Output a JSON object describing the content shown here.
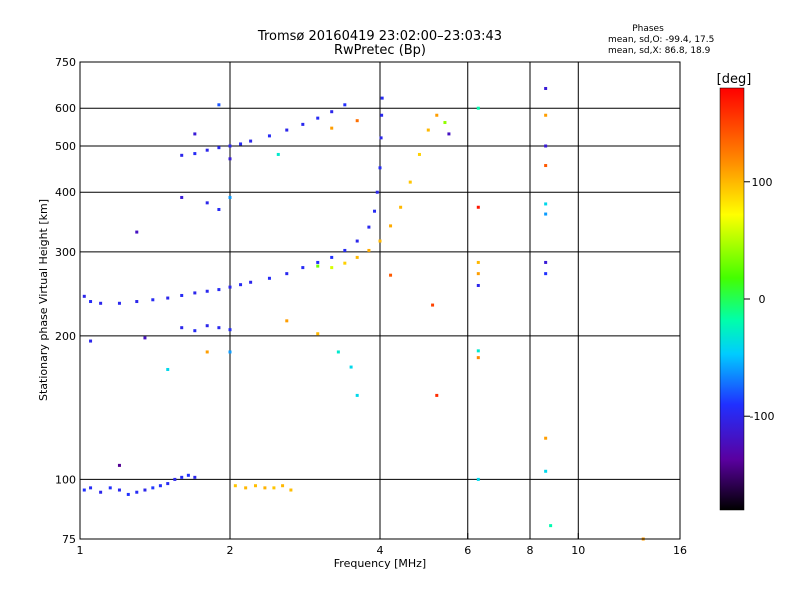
{
  "chart_data": {
    "type": "scatter",
    "title": "Tromsø 20160419 23:02:00–23:03:43",
    "subtitle": "RwPretec (Bp)",
    "xlabel": "Frequency [MHz]",
    "ylabel": "Stationary phase Virtual Height [km]",
    "x_scale": "log",
    "y_scale": "log",
    "xlim": [
      1,
      16
    ],
    "ylim": [
      75,
      750
    ],
    "x_ticks": [
      1,
      2,
      4,
      6,
      8,
      10,
      16
    ],
    "x_tick_labels": [
      "1",
      "2",
      "4",
      "6",
      "8",
      "10",
      "16"
    ],
    "y_ticks": [
      75,
      100,
      200,
      300,
      400,
      500,
      600,
      750
    ],
    "y_tick_labels": [
      "75",
      "100",
      "200",
      "300",
      "400",
      "500",
      "600",
      "750"
    ],
    "grid": true,
    "phases_box": {
      "heading": "Phases",
      "line1": "mean, sd,O:  -99.4, 17.5",
      "line2": "mean, sd,X:  86.8, 18.9"
    },
    "colorbar": {
      "label": "[deg]",
      "range": [
        -180,
        180
      ],
      "ticks": [
        100,
        0,
        -100
      ],
      "tick_labels": [
        "100",
        "0",
        "-100"
      ]
    },
    "series": [
      {
        "points": [
          [
            1.02,
            95,
            -90
          ],
          [
            1.05,
            96,
            -95
          ],
          [
            1.1,
            94,
            -100
          ],
          [
            1.15,
            96,
            -92
          ],
          [
            1.2,
            95,
            -98
          ],
          [
            1.25,
            93,
            -90
          ],
          [
            1.3,
            94,
            -95
          ],
          [
            1.35,
            95,
            -100
          ],
          [
            1.4,
            96,
            -88
          ],
          [
            1.45,
            97,
            -92
          ],
          [
            1.5,
            98,
            -96
          ],
          [
            1.55,
            100,
            -100
          ],
          [
            1.6,
            101,
            -95
          ],
          [
            1.65,
            102,
            -90
          ],
          [
            1.7,
            101,
            -100
          ],
          [
            1.2,
            107,
            -140
          ],
          [
            1.02,
            242,
            -100
          ],
          [
            1.05,
            236,
            -95
          ],
          [
            1.1,
            234,
            -100
          ],
          [
            1.2,
            234,
            -98
          ],
          [
            1.3,
            236,
            -100
          ],
          [
            1.4,
            238,
            -96
          ],
          [
            1.5,
            240,
            -100
          ],
          [
            1.6,
            243,
            -95
          ],
          [
            1.7,
            246,
            -100
          ],
          [
            1.8,
            248,
            -98
          ],
          [
            1.9,
            250,
            -95
          ],
          [
            2.0,
            253,
            -100
          ],
          [
            2.1,
            256,
            -96
          ],
          [
            2.2,
            259,
            -100
          ],
          [
            2.4,
            264,
            -95
          ],
          [
            2.6,
            270,
            -98
          ],
          [
            2.8,
            278,
            -95
          ],
          [
            3.0,
            285,
            -92
          ],
          [
            3.2,
            292,
            -90
          ],
          [
            3.4,
            302,
            -95
          ],
          [
            3.6,
            316,
            -100
          ],
          [
            3.8,
            338,
            -98
          ],
          [
            3.9,
            365,
            -95
          ],
          [
            3.95,
            400,
            -100
          ],
          [
            4.0,
            450,
            -95
          ],
          [
            4.02,
            520,
            -100
          ],
          [
            4.03,
            580,
            -98
          ],
          [
            4.04,
            630,
            -95
          ],
          [
            1.6,
            478,
            -100
          ],
          [
            1.7,
            482,
            -95
          ],
          [
            1.8,
            490,
            -100
          ],
          [
            1.9,
            496,
            -98
          ],
          [
            2.0,
            500,
            -100
          ],
          [
            2.1,
            505,
            -96
          ],
          [
            2.2,
            512,
            -100
          ],
          [
            2.4,
            525,
            -95
          ],
          [
            2.6,
            540,
            -100
          ],
          [
            2.8,
            555,
            -98
          ],
          [
            3.0,
            572,
            -95
          ],
          [
            3.2,
            590,
            -100
          ],
          [
            3.4,
            610,
            -92
          ],
          [
            1.05,
            195,
            -100
          ],
          [
            1.35,
            198,
            -120
          ],
          [
            1.6,
            208,
            -100
          ],
          [
            1.7,
            205,
            -95
          ],
          [
            1.8,
            210,
            -100
          ],
          [
            1.9,
            208,
            -98
          ],
          [
            2.0,
            206,
            -95
          ],
          [
            1.6,
            390,
            -110
          ],
          [
            1.8,
            380,
            -100
          ],
          [
            1.9,
            368,
            -95
          ],
          [
            2.0,
            390,
            -60
          ],
          [
            1.3,
            330,
            -120
          ],
          [
            2.0,
            470,
            -110
          ],
          [
            1.7,
            530,
            -110
          ],
          [
            1.9,
            610,
            -80
          ],
          [
            3.0,
            280,
            30
          ],
          [
            3.2,
            278,
            60
          ],
          [
            3.4,
            284,
            90
          ],
          [
            3.6,
            292,
            100
          ],
          [
            3.8,
            302,
            105
          ],
          [
            4.0,
            316,
            100
          ],
          [
            4.2,
            340,
            105
          ],
          [
            4.4,
            372,
            100
          ],
          [
            4.6,
            420,
            95
          ],
          [
            4.8,
            480,
            90
          ],
          [
            5.0,
            540,
            100
          ],
          [
            5.2,
            580,
            110
          ],
          [
            5.4,
            560,
            40
          ],
          [
            5.5,
            530,
            -120
          ],
          [
            2.05,
            97,
            95
          ],
          [
            2.15,
            96,
            100
          ],
          [
            2.25,
            97,
            98
          ],
          [
            2.35,
            96,
            102
          ],
          [
            2.45,
            96,
            95
          ],
          [
            2.55,
            97,
            100
          ],
          [
            2.65,
            95,
            98
          ],
          [
            3.2,
            545,
            110
          ],
          [
            3.6,
            565,
            130
          ],
          [
            3.0,
            202,
            100
          ],
          [
            5.1,
            232,
            150
          ],
          [
            4.2,
            268,
            140
          ],
          [
            5.2,
            150,
            160
          ],
          [
            6.3,
            285,
            100
          ],
          [
            6.3,
            270,
            110
          ],
          [
            6.3,
            255,
            -100
          ],
          [
            6.3,
            372,
            170
          ],
          [
            6.3,
            600,
            -20
          ],
          [
            6.3,
            186,
            -30
          ],
          [
            6.3,
            180,
            120
          ],
          [
            6.3,
            100,
            -40
          ],
          [
            8.6,
            660,
            -110
          ],
          [
            8.6,
            580,
            110
          ],
          [
            8.6,
            500,
            -110
          ],
          [
            8.6,
            455,
            140
          ],
          [
            8.6,
            378,
            -40
          ],
          [
            8.6,
            360,
            -60
          ],
          [
            8.6,
            285,
            -110
          ],
          [
            8.6,
            270,
            -90
          ],
          [
            8.6,
            122,
            110
          ],
          [
            8.6,
            104,
            -40
          ],
          [
            8.8,
            80,
            -20
          ],
          [
            13.5,
            75,
            110
          ],
          [
            1.5,
            170,
            -40
          ],
          [
            1.8,
            185,
            110
          ],
          [
            2.0,
            185,
            -60
          ],
          [
            2.6,
            215,
            110
          ],
          [
            3.3,
            185,
            -30
          ],
          [
            3.5,
            172,
            -40
          ],
          [
            3.6,
            150,
            -40
          ],
          [
            2.5,
            480,
            -30
          ]
        ]
      }
    ]
  }
}
